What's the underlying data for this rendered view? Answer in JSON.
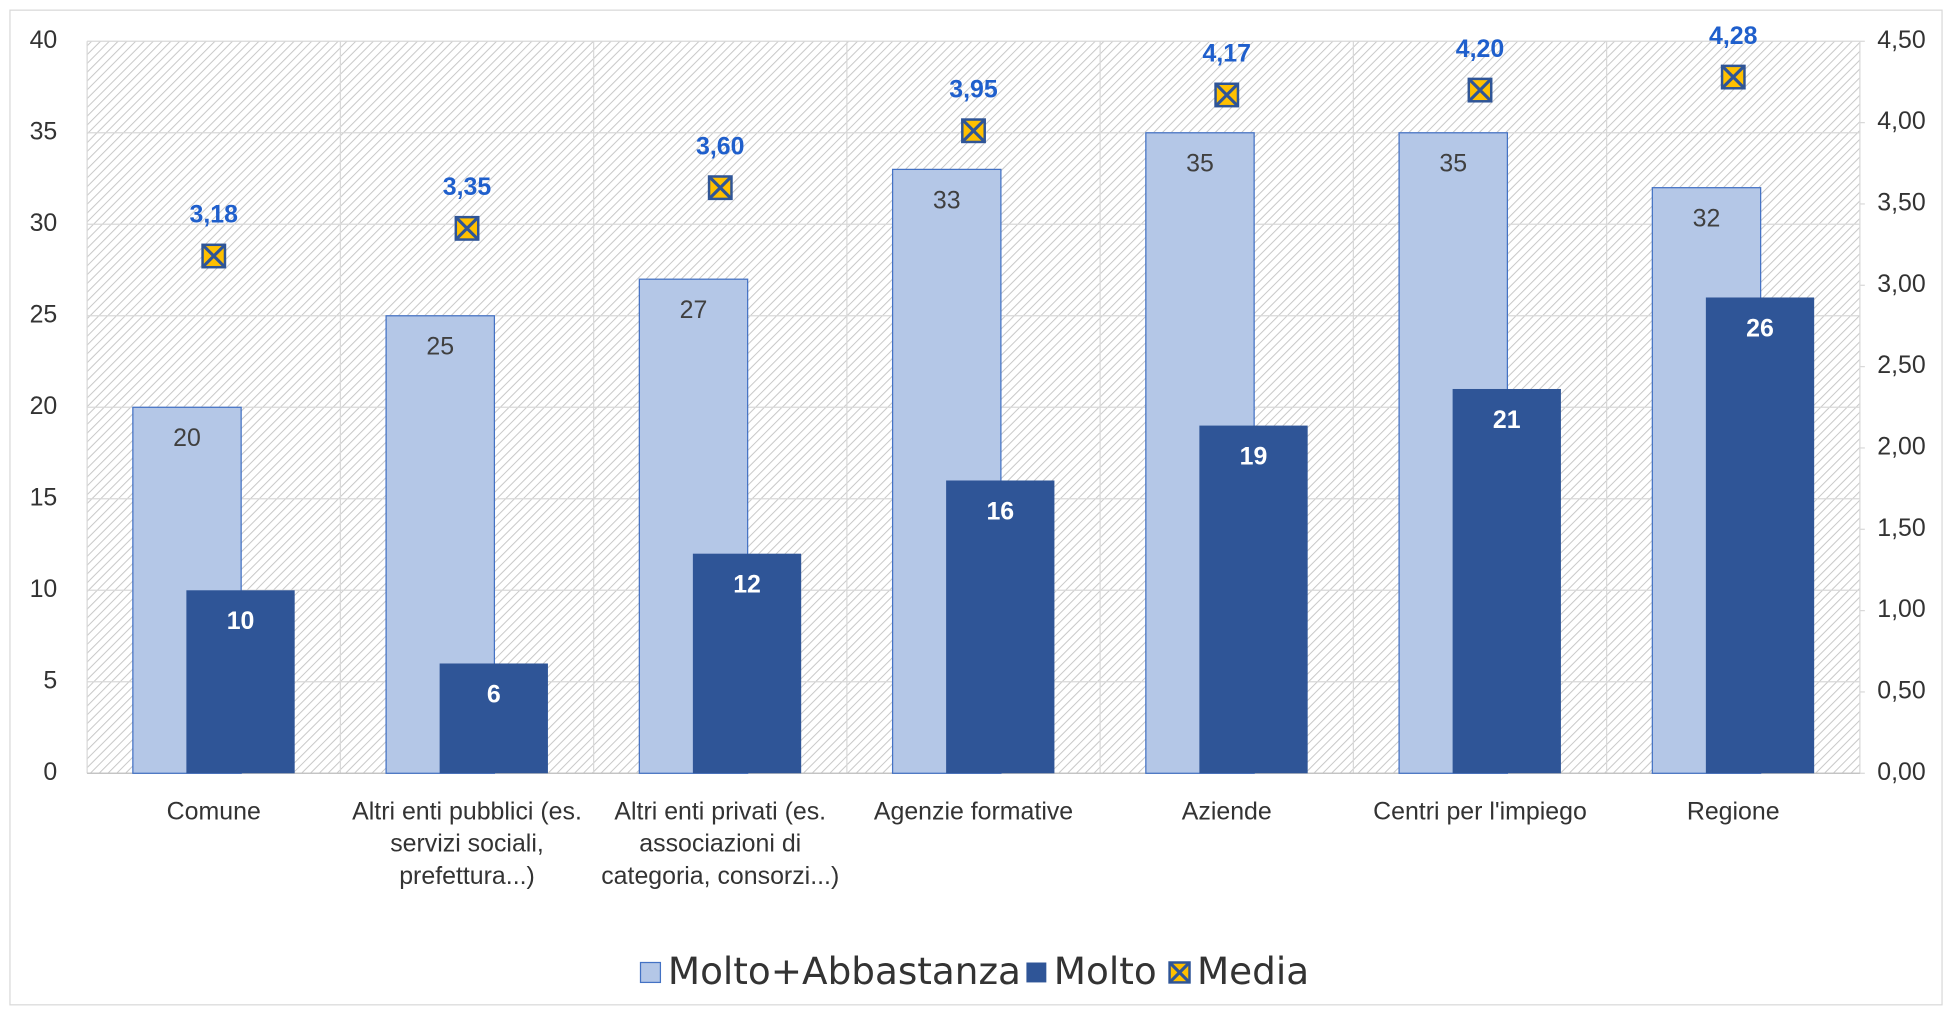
{
  "chart_data": {
    "type": "bar",
    "categories": [
      "Comune",
      "Altri enti pubblici (es. servizi sociali, prefettura...)",
      "Altri enti privati (es. associazioni di categoria, consorzi...)",
      "Agenzie formative",
      "Aziende",
      "Centri per l'impiego",
      "Regione"
    ],
    "series": [
      {
        "name": "Molto+Abbastanza",
        "color": "#b4c7e7",
        "values": [
          20,
          25,
          27,
          33,
          35,
          35,
          32
        ]
      },
      {
        "name": "Molto",
        "color": "#2f5597",
        "values": [
          10,
          6,
          12,
          16,
          19,
          21,
          26
        ]
      },
      {
        "name": "Media",
        "color": "#ffc000",
        "axis": "y2",
        "values": [
          3.18,
          3.35,
          3.6,
          3.95,
          4.17,
          4.2,
          4.28
        ],
        "value_labels": [
          "3,18",
          "3,35",
          "3,60",
          "3,95",
          "4,17",
          "4,20",
          "4,28"
        ]
      }
    ],
    "ylim": [
      0,
      40
    ],
    "yticks": [
      0,
      5,
      10,
      15,
      20,
      25,
      30,
      35,
      40
    ],
    "y2lim": [
      0,
      4.5
    ],
    "y2ticks": [
      {
        "value": 0,
        "label": "0,00"
      },
      {
        "value": 0.5,
        "label": "0,50"
      },
      {
        "value": 1,
        "label": "1,00"
      },
      {
        "value": 1.5,
        "label": "1,50"
      },
      {
        "value": 2,
        "label": "2,00"
      },
      {
        "value": 2.5,
        "label": "2,50"
      },
      {
        "value": 3,
        "label": "3,00"
      },
      {
        "value": 3.5,
        "label": "3,50"
      },
      {
        "value": 4,
        "label": "4,00"
      },
      {
        "value": 4.5,
        "label": "4,50"
      }
    ],
    "grid": true,
    "legend": "bottom"
  }
}
